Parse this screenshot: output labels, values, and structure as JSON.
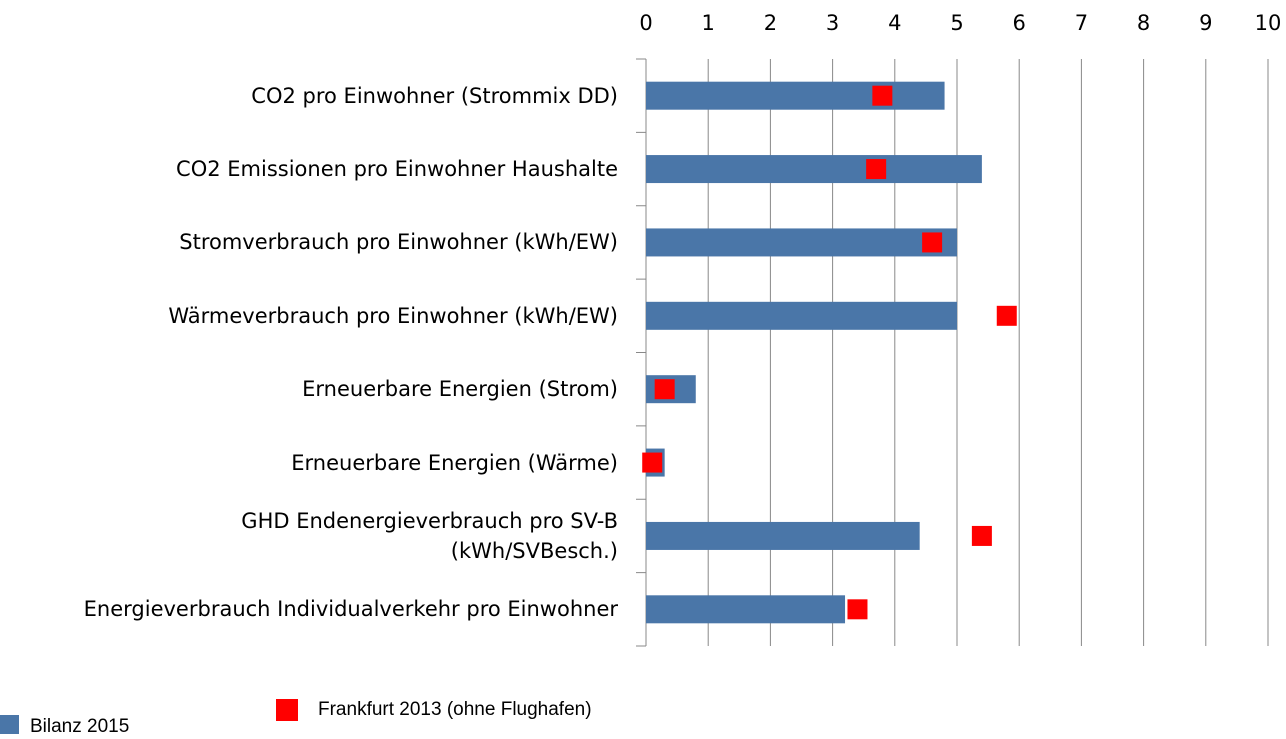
{
  "chart_data": {
    "type": "bar",
    "categories": [
      "CO2 pro Einwohner (Strommix DD)",
      "CO2 Emissionen pro Einwohner Haushalte",
      "Stromverbrauch pro Einwohner (kWh/EW)",
      "Wärmeverbrauch pro Einwohner (kWh/EW)",
      "Erneuerbare Energien (Strom)",
      "Erneuerbare Energien (Wärme)",
      "GHD Endenergieverbrauch pro SV-B\n(kWh/SVBesch.)",
      "Energieverbrauch Individualverkehr pro Einwohner"
    ],
    "series": [
      {
        "name": "Bilanz 2015",
        "color": "#4a76a8",
        "kind": "bar",
        "values": [
          4.8,
          5.4,
          5.0,
          5.0,
          0.8,
          0.3,
          4.4,
          3.2
        ]
      },
      {
        "name": "Frankfurt 2013 (ohne Flughafen)",
        "color": "#ff0000",
        "kind": "marker",
        "values": [
          3.8,
          3.7,
          4.6,
          5.8,
          0.3,
          0.1,
          5.4,
          3.4
        ]
      }
    ],
    "xlim": [
      0,
      10
    ],
    "xticks": [
      0,
      1,
      2,
      3,
      4,
      5,
      6,
      7,
      8,
      9,
      10
    ],
    "grid": true,
    "xaxis_position": "top",
    "orientation": "horizontal",
    "legend": "bottom-left"
  }
}
